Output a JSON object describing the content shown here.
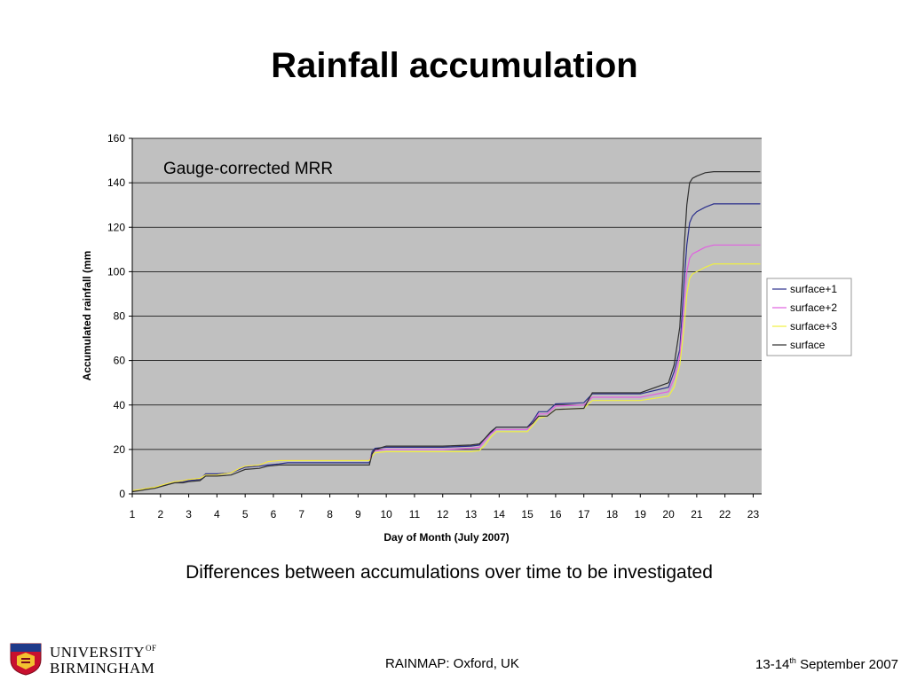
{
  "slide": {
    "title": "Rainfall accumulation",
    "caption": "Differences between accumulations over time to be investigated",
    "footer_center": "RAINMAP: Oxford, UK",
    "footer_date_prefix": "13-14",
    "footer_date_sup": "th",
    "footer_date_suffix": " September 2007",
    "logo_line1": "UNIVERSITY",
    "logo_of": "OF",
    "logo_line2": "BIRMINGHAM"
  },
  "chart_data": {
    "type": "line",
    "annotation": "Gauge-corrected MRR",
    "xlabel": "Day of Month (July 2007)",
    "ylabel": "Accumulated rainfall (mm",
    "xlim": [
      1,
      23.3
    ],
    "ylim": [
      0,
      160
    ],
    "x_ticks": [
      1,
      2,
      3,
      4,
      5,
      6,
      7,
      8,
      9,
      10,
      11,
      12,
      13,
      14,
      15,
      16,
      17,
      18,
      19,
      20,
      21,
      22,
      23
    ],
    "y_ticks": [
      0,
      20,
      40,
      60,
      80,
      100,
      120,
      140,
      160
    ],
    "grid": "horizontal",
    "legend_position": "right",
    "plot_background": "#c0c0c0",
    "series": [
      {
        "name": "surface+1",
        "color": "#2b2f8c",
        "x": [
          1,
          1.3,
          1.5,
          1.8,
          2.2,
          2.5,
          2.8,
          3.0,
          3.4,
          3.6,
          4.0,
          4.5,
          4.8,
          5.0,
          5.5,
          5.8,
          6.2,
          6.5,
          7.0,
          8.0,
          9.0,
          9.4,
          9.5,
          9.6,
          10.0,
          11.0,
          12.0,
          13.0,
          13.3,
          13.5,
          13.7,
          13.9,
          14.5,
          15.0,
          15.2,
          15.4,
          15.7,
          16.0,
          17.0,
          17.3,
          17.5,
          18.0,
          19.0,
          20.0,
          20.2,
          20.4,
          20.55,
          20.65,
          20.75,
          20.85,
          21.0,
          21.3,
          21.6,
          22.0,
          22.5,
          23.0,
          23.25
        ],
        "y": [
          1,
          2,
          2.5,
          3,
          4,
          5.5,
          5.5,
          6,
          6.5,
          9,
          9,
          9.5,
          11,
          12,
          12.5,
          13,
          13.5,
          14,
          14,
          14,
          14,
          14,
          19,
          20.5,
          21,
          21,
          21,
          21.5,
          22,
          25,
          27.5,
          30,
          30,
          30,
          33,
          37,
          37,
          40.5,
          41,
          45,
          45,
          45,
          45,
          48,
          55,
          65,
          95,
          112,
          122,
          125,
          127,
          129,
          130.5,
          130.5,
          130.5,
          130.5,
          130.5
        ]
      },
      {
        "name": "surface+2",
        "color": "#e060e0",
        "x": [
          1,
          1.3,
          1.5,
          1.8,
          2.2,
          2.5,
          2.8,
          3.0,
          3.4,
          3.6,
          4.0,
          4.5,
          4.8,
          5.0,
          5.5,
          5.8,
          6.2,
          6.5,
          7.0,
          8.0,
          9.0,
          9.4,
          9.5,
          9.6,
          10.0,
          11.0,
          12.0,
          13.0,
          13.3,
          13.5,
          13.7,
          13.9,
          14.5,
          15.0,
          15.2,
          15.4,
          15.7,
          16.0,
          17.0,
          17.3,
          17.5,
          18.0,
          19.0,
          20.0,
          20.2,
          20.4,
          20.55,
          20.65,
          20.75,
          20.85,
          21.0,
          21.3,
          21.6,
          22.0,
          22.5,
          23.0,
          23.25
        ],
        "y": [
          1.5,
          2,
          2.5,
          3,
          4.5,
          5.5,
          6,
          6.5,
          7,
          8.5,
          8.5,
          9.5,
          11.5,
          12.5,
          13,
          14.5,
          15,
          15,
          15,
          15,
          15,
          15,
          18,
          19.5,
          20,
          20,
          20,
          20.5,
          21,
          24,
          27,
          29,
          29,
          29,
          32,
          36,
          36,
          39.5,
          40,
          43.5,
          43.5,
          43.5,
          43.5,
          46,
          52,
          62,
          85,
          100,
          106,
          108,
          109,
          111,
          112,
          112,
          112,
          112,
          112
        ]
      },
      {
        "name": "surface+3",
        "color": "#f0f040",
        "x": [
          1,
          1.3,
          1.5,
          1.8,
          2.2,
          2.5,
          2.8,
          3.0,
          3.4,
          3.6,
          4.0,
          4.5,
          4.8,
          5.0,
          5.5,
          5.8,
          6.2,
          6.5,
          7.0,
          8.0,
          9.0,
          9.4,
          9.5,
          9.6,
          10.0,
          11.0,
          12.0,
          13.0,
          13.3,
          13.5,
          13.7,
          13.9,
          14.5,
          15.0,
          15.2,
          15.4,
          15.7,
          16.0,
          17.0,
          17.3,
          17.5,
          18.0,
          19.0,
          20.0,
          20.2,
          20.4,
          20.55,
          20.65,
          20.75,
          20.85,
          21.0,
          21.3,
          21.6,
          22.0,
          22.5,
          23.0,
          23.25
        ],
        "y": [
          1.5,
          2,
          2.5,
          3,
          4.5,
          5.5,
          6,
          6.5,
          7,
          8.5,
          8.5,
          9.5,
          11.5,
          12.5,
          13,
          14.5,
          15,
          15,
          15,
          15,
          15,
          15,
          17,
          18.5,
          19,
          19,
          19,
          19,
          19.5,
          22,
          25.5,
          28,
          28,
          28,
          31,
          34,
          35,
          38,
          38.5,
          42,
          42,
          42,
          42,
          44,
          48,
          58,
          75,
          90,
          97,
          99,
          100,
          102,
          103.5,
          103.5,
          103.5,
          103.5,
          103.5
        ]
      },
      {
        "name": "surface",
        "color": "#303030",
        "x": [
          1,
          1.3,
          1.5,
          1.8,
          2.2,
          2.5,
          2.8,
          3.0,
          3.4,
          3.6,
          4.0,
          4.5,
          4.8,
          5.0,
          5.5,
          5.8,
          6.2,
          6.5,
          7.0,
          8.0,
          9.0,
          9.4,
          9.5,
          9.6,
          10.0,
          11.0,
          12.0,
          13.0,
          13.3,
          13.5,
          13.7,
          13.9,
          14.5,
          15.0,
          15.2,
          15.4,
          15.7,
          16.0,
          17.0,
          17.3,
          17.5,
          18.0,
          19.0,
          20.0,
          20.2,
          20.4,
          20.55,
          20.65,
          20.75,
          20.85,
          21.0,
          21.3,
          21.6,
          22.0,
          22.5,
          23.0,
          23.25
        ],
        "y": [
          1,
          1.5,
          2,
          2.5,
          4,
          5,
          5,
          5.5,
          6,
          8,
          8,
          8.5,
          10,
          11,
          11.5,
          12.5,
          13,
          13,
          13,
          13,
          13,
          13,
          18,
          20,
          21.5,
          21.5,
          21.5,
          22,
          22.5,
          25,
          28,
          30,
          30,
          30,
          32,
          35,
          35,
          38,
          38.5,
          45.5,
          45.5,
          45.5,
          45.5,
          50,
          58,
          75,
          110,
          130,
          140,
          142,
          143,
          144.5,
          145,
          145,
          145,
          145,
          145
        ]
      }
    ]
  }
}
